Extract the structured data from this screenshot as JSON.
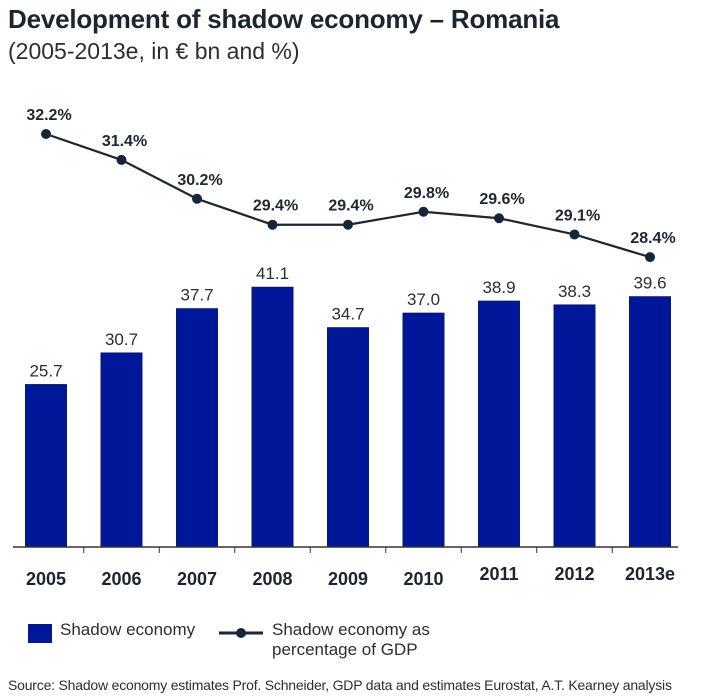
{
  "title": "Development of shadow economy – Romania",
  "subtitle": "(2005-2013e, in € bn and %)",
  "colors": {
    "bar": "#00179a",
    "bar_border": "#0a1a6a",
    "line": "#1e2630",
    "marker": "#16253a",
    "axis": "#333333"
  },
  "legend": {
    "bar_label": "Shadow economy",
    "line_label_1": "Shadow economy as",
    "line_label_2": "percentage of GDP"
  },
  "source": "Source:  Shadow economy estimates Prof. Schneider, GDP data and estimates Eurostat, A.T. Kearney analysis",
  "chart_data": {
    "type": "bar",
    "title": "Development of shadow economy – Romania",
    "subtitle": "(2005-2013e, in € bn and %)",
    "categories": [
      "2005",
      "2006",
      "2007",
      "2008",
      "2009",
      "2010",
      "2011",
      "2012",
      "2013e"
    ],
    "series": [
      {
        "name": "Shadow economy",
        "type": "bar",
        "unit": "€ bn",
        "values": [
          25.7,
          30.7,
          37.7,
          41.1,
          34.7,
          37.0,
          38.9,
          38.3,
          39.6
        ],
        "labels": [
          "25.7",
          "30.7",
          "37.7",
          "41.1",
          "34.7",
          "37.0",
          "38.9",
          "38.3",
          "39.6"
        ]
      },
      {
        "name": "Shadow economy as percentage of GDP",
        "type": "line",
        "unit": "%",
        "values": [
          32.2,
          31.4,
          30.2,
          29.4,
          29.4,
          29.8,
          29.6,
          29.1,
          28.4
        ],
        "labels": [
          "32.2%",
          "31.4%",
          "30.2%",
          "29.4%",
          "29.4%",
          "29.8%",
          "29.6%",
          "29.1%",
          "28.4%"
        ]
      }
    ],
    "xlabel": "",
    "ylabel": "",
    "ylim": [
      0,
      45
    ],
    "grid": false,
    "legend_position": "bottom-left"
  }
}
